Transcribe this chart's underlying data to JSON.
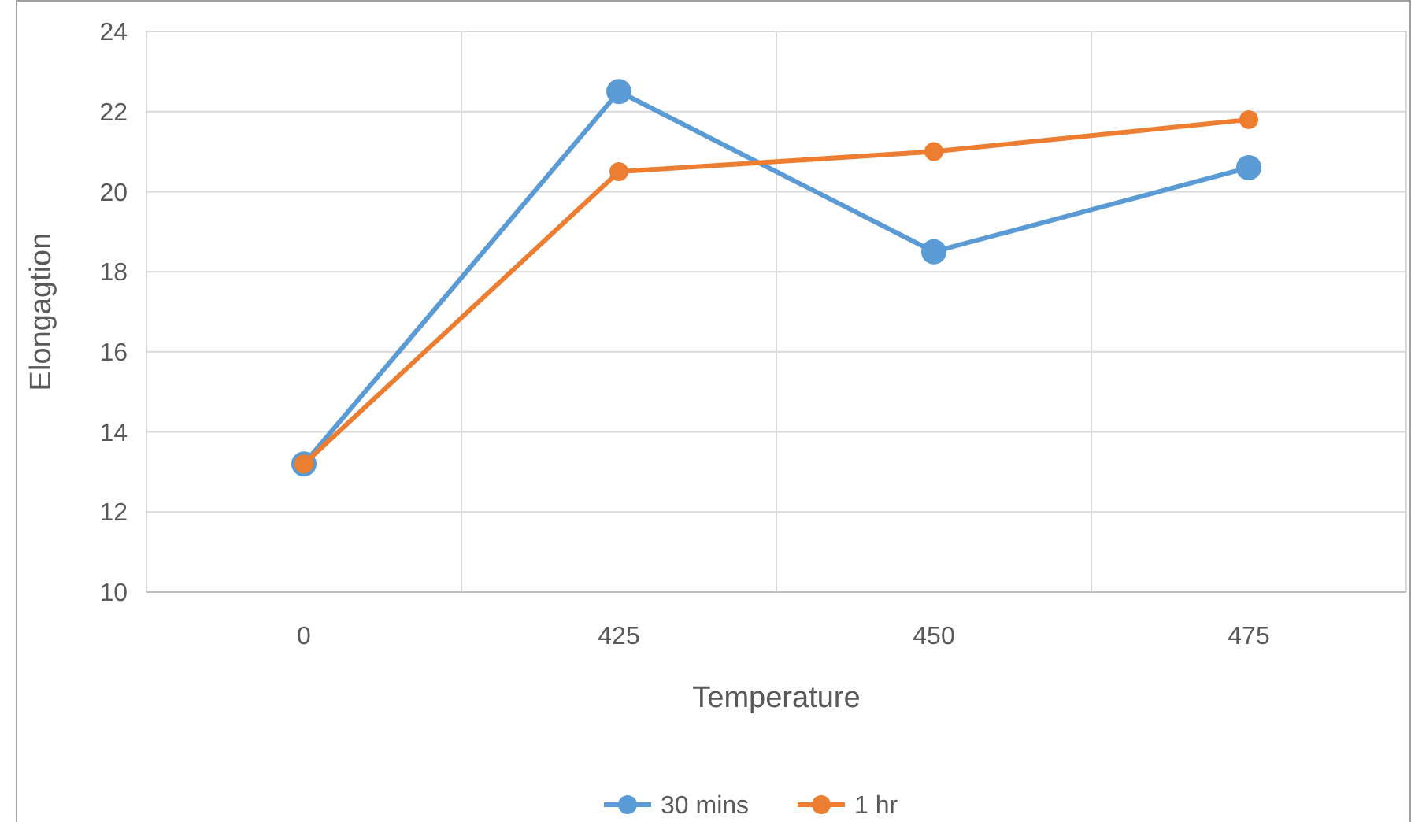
{
  "chart_data": {
    "type": "line",
    "xlabel": "Temperature",
    "ylabel": "Elongagtion",
    "categories": [
      "0",
      "425",
      "450",
      "475"
    ],
    "series": [
      {
        "name": "30 mins",
        "color": "#5b9bd5",
        "values": [
          13.2,
          22.5,
          18.5,
          20.6
        ]
      },
      {
        "name": "1 hr",
        "color": "#ed7d31",
        "values": [
          13.2,
          20.5,
          21.0,
          21.8
        ]
      }
    ],
    "ylim": [
      10,
      24
    ],
    "yticks": [
      10,
      12,
      14,
      16,
      18,
      20,
      22,
      24
    ],
    "grid": true,
    "legend": "bottom",
    "marker": "circle",
    "line_style": "solid"
  }
}
